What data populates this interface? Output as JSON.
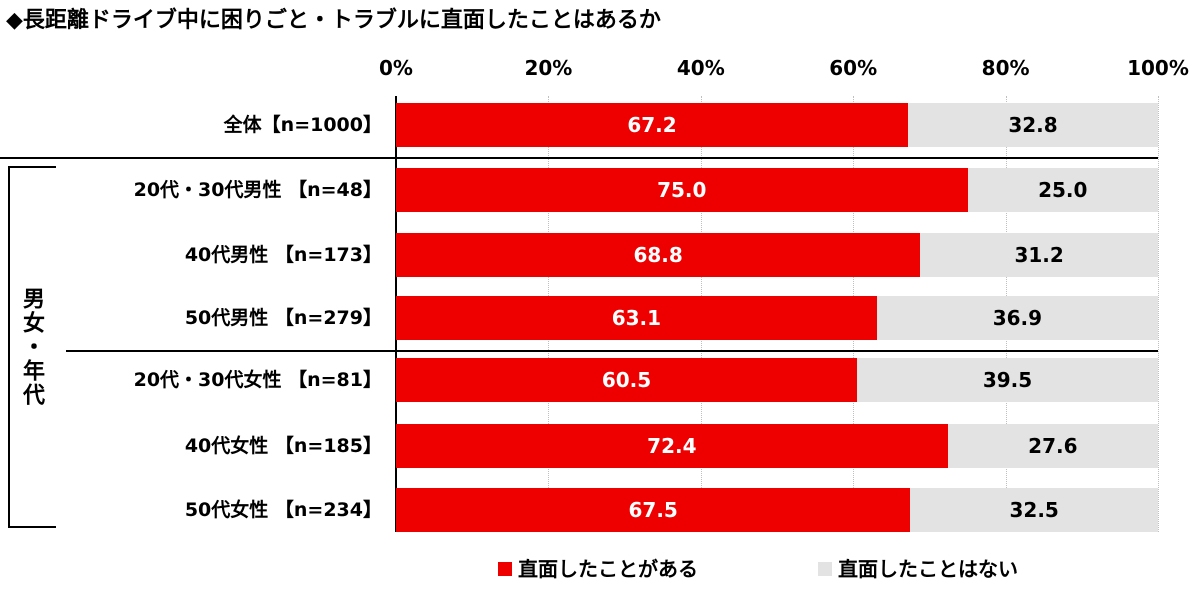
{
  "chart_data": {
    "type": "bar",
    "orientation": "horizontal",
    "stacked": true,
    "title": "◆長距離ドライブ中に困りごと・トラブルに直面したことはあるか",
    "x_ticks": [
      "0%",
      "20%",
      "40%",
      "60%",
      "80%",
      "100%"
    ],
    "xlim": [
      0,
      100
    ],
    "group_label": "男女・年代",
    "categories": [
      "全体【n=1000】",
      "20代・30代男性 【n=48】",
      "40代男性 【n=173】",
      "50代男性 【n=279】",
      "20代・30代女性 【n=81】",
      "40代女性 【n=185】",
      "50代女性 【n=234】"
    ],
    "series": [
      {
        "name": "直面したことがある",
        "color": "#ee0000",
        "values": [
          67.2,
          75.0,
          68.8,
          63.1,
          60.5,
          72.4,
          67.5
        ],
        "labels": [
          "67.2",
          "75.0",
          "68.8",
          "63.1",
          "60.5",
          "72.4",
          "67.5"
        ]
      },
      {
        "name": "直面したことはない",
        "color": "#e3e3e3",
        "values": [
          32.8,
          25.0,
          31.2,
          36.9,
          39.5,
          27.6,
          32.5
        ],
        "labels": [
          "32.8",
          "25.0",
          "31.2",
          "36.9",
          "39.5",
          "27.6",
          "32.5"
        ]
      }
    ],
    "legend_position": "bottom",
    "grid": true
  }
}
